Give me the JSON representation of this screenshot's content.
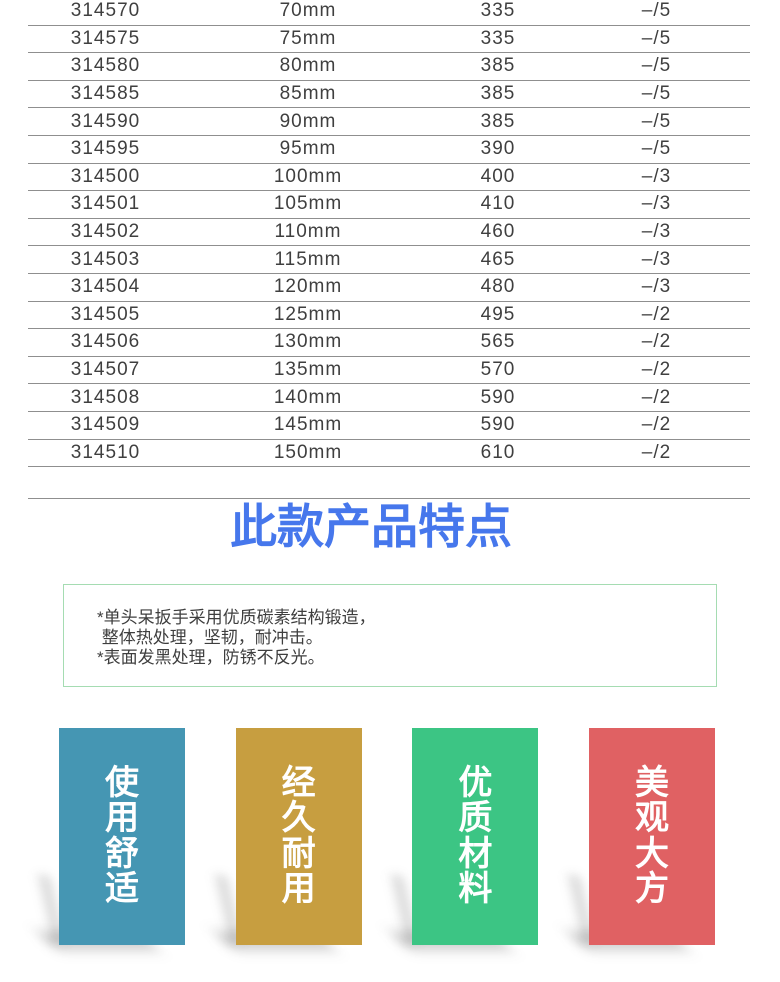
{
  "table": {
    "line_color": "#8f8f8f",
    "text_color": "#3f3f3f",
    "rows": [
      {
        "code": "314570",
        "size": "70mm",
        "value": "335",
        "pack": "–/5"
      },
      {
        "code": "314575",
        "size": "75mm",
        "value": "335",
        "pack": "–/5"
      },
      {
        "code": "314580",
        "size": "80mm",
        "value": "385",
        "pack": "–/5"
      },
      {
        "code": "314585",
        "size": "85mm",
        "value": "385",
        "pack": "–/5"
      },
      {
        "code": "314590",
        "size": "90mm",
        "value": "385",
        "pack": "–/5"
      },
      {
        "code": "314595",
        "size": "95mm",
        "value": "390",
        "pack": "–/5"
      },
      {
        "code": "314500",
        "size": "100mm",
        "value": "400",
        "pack": "–/3"
      },
      {
        "code": "314501",
        "size": "105mm",
        "value": "410",
        "pack": "–/3"
      },
      {
        "code": "314502",
        "size": "110mm",
        "value": "460",
        "pack": "–/3"
      },
      {
        "code": "314503",
        "size": "115mm",
        "value": "465",
        "pack": "–/3"
      },
      {
        "code": "314504",
        "size": "120mm",
        "value": "480",
        "pack": "–/3"
      },
      {
        "code": "314505",
        "size": "125mm",
        "value": "495",
        "pack": "–/2"
      },
      {
        "code": "314506",
        "size": "130mm",
        "value": "565",
        "pack": "–/2"
      },
      {
        "code": "314507",
        "size": "135mm",
        "value": "570",
        "pack": "–/2"
      },
      {
        "code": "314508",
        "size": "140mm",
        "value": "590",
        "pack": "–/2"
      },
      {
        "code": "314509",
        "size": "145mm",
        "value": "590",
        "pack": "–/2"
      },
      {
        "code": "314510",
        "size": "150mm",
        "value": "610",
        "pack": "–/2"
      }
    ]
  },
  "features": {
    "title": "此款产品特点",
    "title_color": "#4677ec",
    "box_border_color": "#a5dcb2",
    "description_lines": [
      "*单头呆扳手采用优质碳素结构锻造，",
      " 整体热处理，坚韧，耐冲击。",
      "*表面发黑处理，防锈不反光。"
    ],
    "banners": [
      {
        "label": "使用舒适",
        "color": "#4596b3"
      },
      {
        "label": "经久耐用",
        "color": "#c79e40"
      },
      {
        "label": "优质材料",
        "color": "#3cc584"
      },
      {
        "label": "美观大方",
        "color": "#e06163"
      }
    ]
  }
}
